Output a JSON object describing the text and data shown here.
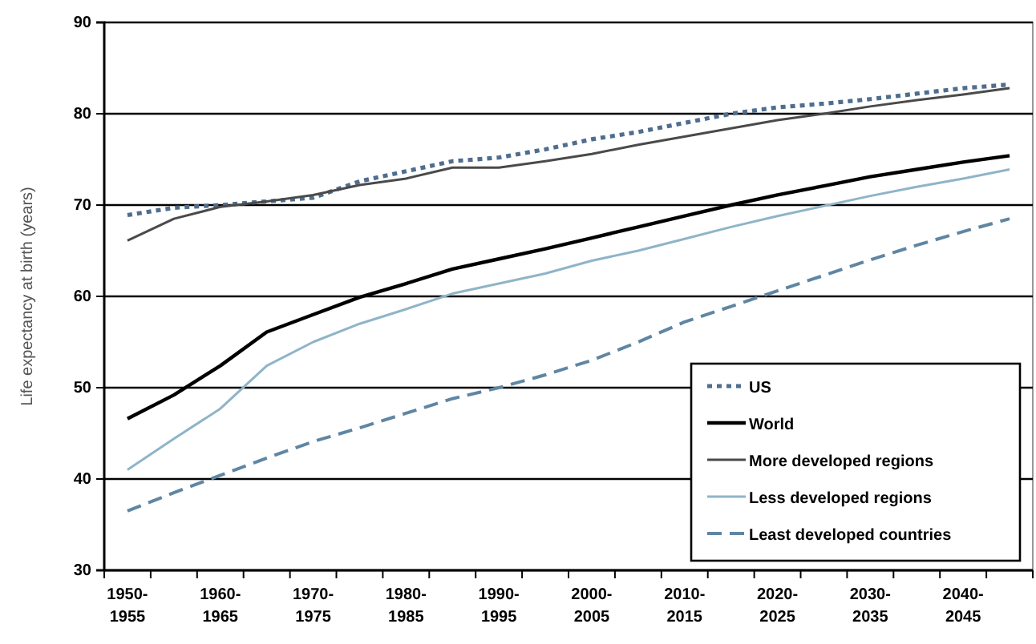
{
  "chart_data": {
    "type": "line",
    "ylabel": "Life expectancy at birth (years)",
    "categories": [
      "1950-1955",
      null,
      "1960-1965",
      null,
      "1970-1975",
      null,
      "1980-1985",
      null,
      "1990-1995",
      null,
      "2000-2005",
      null,
      "2010-2015",
      null,
      "2020-2025",
      null,
      "2030-2035",
      null,
      "2040-2045",
      null
    ],
    "series": [
      {
        "name": "US",
        "color": "#4f6d8f",
        "line_style": "dotted",
        "values": [
          68.9,
          69.7,
          70.0,
          70.4,
          70.8,
          72.6,
          73.7,
          74.8,
          75.2,
          76.1,
          77.2,
          78.0,
          79.0,
          80.0,
          80.7,
          81.1,
          81.6,
          82.2,
          82.8,
          83.2
        ]
      },
      {
        "name": "World",
        "color": "#000000",
        "line_style": "solid",
        "values": [
          46.6,
          49.2,
          52.4,
          56.1,
          58.0,
          59.9,
          61.4,
          63.0,
          64.1,
          65.2,
          66.4,
          67.6,
          68.8,
          70.0,
          71.1,
          72.1,
          73.1,
          73.9,
          74.7,
          75.4
        ]
      },
      {
        "name": "More developed regions",
        "color": "#4a4a4a",
        "line_style": "solid",
        "values": [
          66.1,
          68.5,
          69.8,
          70.4,
          71.1,
          72.2,
          72.9,
          74.1,
          74.1,
          74.8,
          75.6,
          76.6,
          77.5,
          78.4,
          79.3,
          80.0,
          80.8,
          81.5,
          82.1,
          82.8
        ]
      },
      {
        "name": "Less developed regions",
        "color": "#8fb4c8",
        "line_style": "solid",
        "values": [
          41.0,
          44.4,
          47.7,
          52.4,
          55.0,
          57.0,
          58.6,
          60.3,
          61.4,
          62.5,
          63.9,
          65.0,
          66.3,
          67.6,
          68.8,
          69.9,
          71.0,
          72.0,
          72.9,
          73.9
        ]
      },
      {
        "name": "Least developed countries",
        "color": "#5f86a3",
        "line_style": "dashed",
        "values": [
          36.5,
          38.5,
          40.4,
          42.3,
          44.1,
          45.6,
          47.2,
          48.8,
          50.0,
          51.4,
          53.0,
          55.0,
          57.2,
          58.9,
          60.6,
          62.3,
          64.0,
          65.6,
          67.1,
          68.5
        ]
      }
    ],
    "ylim": [
      30,
      90
    ],
    "yticks": [
      30,
      40,
      50,
      60,
      70,
      80,
      90
    ],
    "grid": "y",
    "legend": "bottom right"
  }
}
